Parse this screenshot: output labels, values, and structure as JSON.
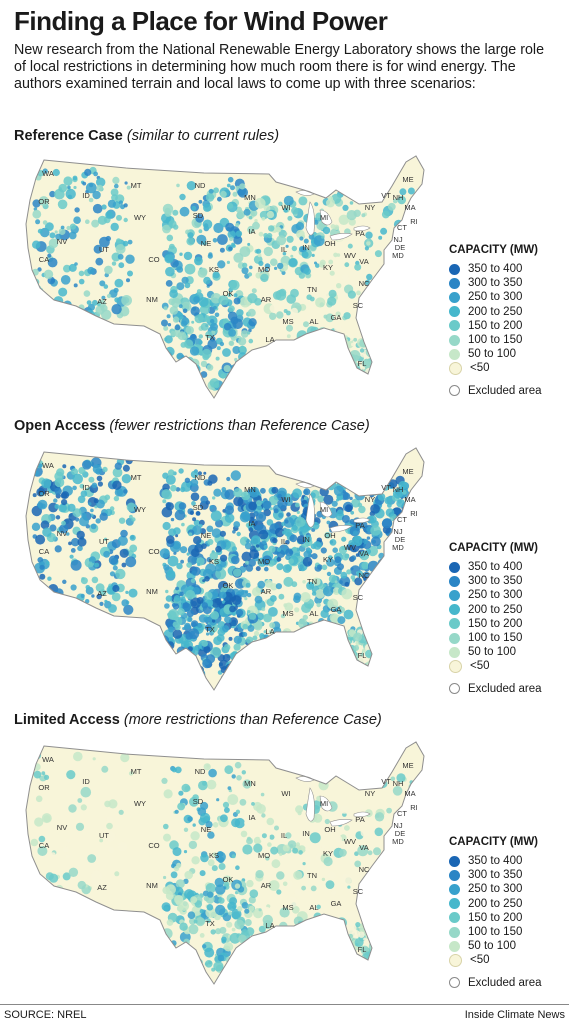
{
  "title": "Finding a Place for Wind Power",
  "intro": "New research from the National Renewable Energy Laboratory shows the large role of local restrictions in determining how much room there is for wind energy. The authors examined terrain and local laws to come up with three scenarios:",
  "palette": {
    "background": "#f8f5d9",
    "border": "#8f8f8f",
    "capacity_colors": [
      "#1a66b4",
      "#2a85c5",
      "#38a1cc",
      "#46b7cc",
      "#6acac9",
      "#96d8c8",
      "#c6e7c8",
      "#f8f5d9"
    ]
  },
  "legend": {
    "title": "CAPACITY (MW)",
    "bins": [
      "350 to 400",
      "300 to 350",
      "250 to 300",
      "200 to 250",
      "150 to 200",
      "100 to 150",
      "50 to 100",
      "<50"
    ],
    "excluded": "Excluded area"
  },
  "state_labels": [
    "WA",
    "OR",
    "ID",
    "MT",
    "ND",
    "MN",
    "WI",
    "MI",
    "ME",
    "VT",
    "NH",
    "MA",
    "RI",
    "CT",
    "NY",
    "NJ",
    "DE",
    "MD",
    "PA",
    "OH",
    "IN",
    "IL",
    "IA",
    "SD",
    "WY",
    "NE",
    "NV",
    "CA",
    "UT",
    "CO",
    "KS",
    "MO",
    "KY",
    "WV",
    "VA",
    "NC",
    "TN",
    "SC",
    "GA",
    "AL",
    "MS",
    "AR",
    "OK",
    "TX",
    "LA",
    "NM",
    "AZ",
    "FL"
  ],
  "scenarios": [
    {
      "name": "Reference Case",
      "subtitle": "(similar to current rules)",
      "wind_intensity": {
        "west": "medium-high",
        "plains": "medium-high",
        "midwest": "medium",
        "east": "low-medium",
        "south": "low",
        "texas": "medium-high",
        "florida": "low"
      }
    },
    {
      "name": "Open Access",
      "subtitle": "(fewer restrictions than Reference Case)",
      "wind_intensity": {
        "west": "high",
        "plains": "high",
        "midwest": "high",
        "east": "high",
        "south": "medium",
        "texas": "high",
        "florida": "low"
      }
    },
    {
      "name": "Limited Access",
      "subtitle": "(more restrictions than Reference Case)",
      "wind_intensity": {
        "west": "low",
        "plains": "medium",
        "midwest": "low",
        "east": "low",
        "south": "low",
        "texas": "medium",
        "florida": "low"
      }
    }
  ],
  "footer": {
    "source": "SOURCE: NREL",
    "credit": "Inside Climate News"
  }
}
